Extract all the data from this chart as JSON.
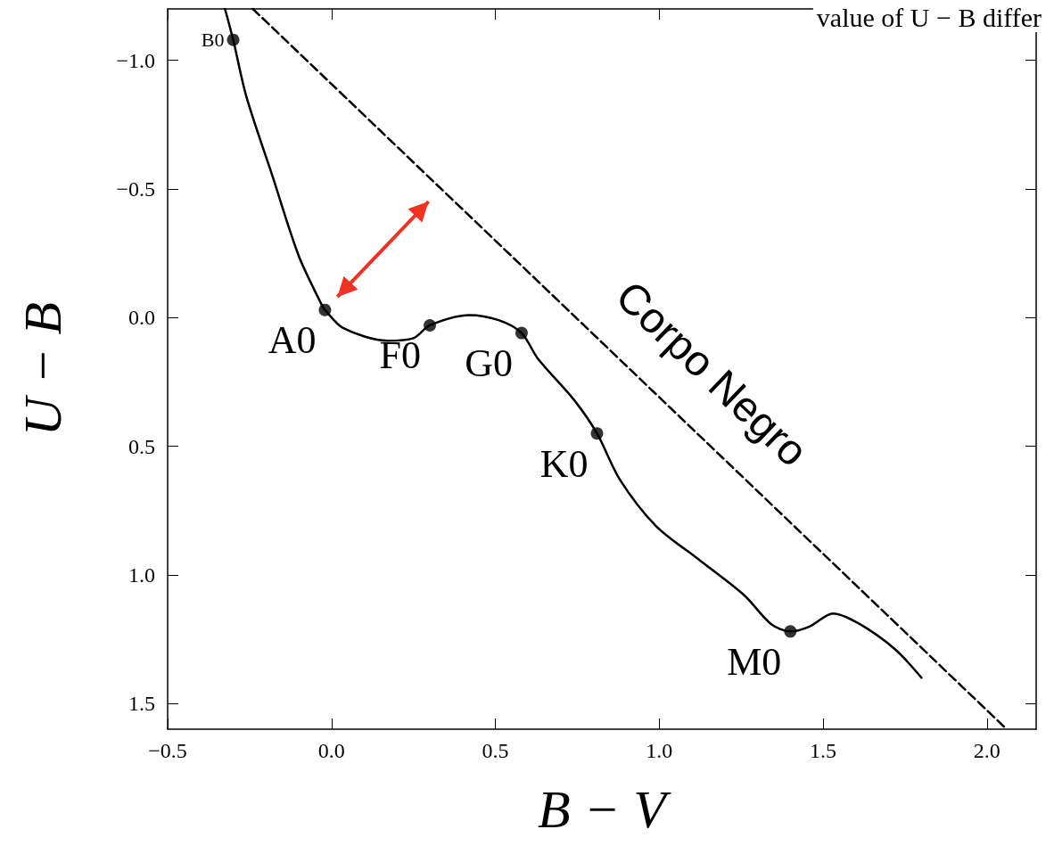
{
  "chart_data": {
    "type": "line",
    "xlabel": "B − V",
    "ylabel": "U − B",
    "xlim": [
      -0.5,
      2.15
    ],
    "ylim": [
      1.6,
      -1.2
    ],
    "xticks": [
      {
        "value": -0.5,
        "label": "−0.5"
      },
      {
        "value": 0,
        "label": "0.0"
      },
      {
        "value": 0.5,
        "label": "0.5"
      },
      {
        "value": 1,
        "label": "1.0"
      },
      {
        "value": 1.5,
        "label": "1.5"
      },
      {
        "value": 2,
        "label": "2.0"
      }
    ],
    "yticks": [
      {
        "value": -1,
        "label": "−1.0"
      },
      {
        "value": -0.5,
        "label": "−0.5"
      },
      {
        "value": 0,
        "label": "0.0"
      },
      {
        "value": 0.5,
        "label": "0.5"
      },
      {
        "value": 1,
        "label": "1.0"
      },
      {
        "value": 1.5,
        "label": "1.5"
      }
    ],
    "grid": false,
    "legend": false,
    "series": [
      {
        "color": "#000000",
        "line_style": "solid",
        "x": [
          -0.325,
          -0.3,
          -0.26,
          -0.18,
          -0.1,
          -0.03,
          -0.02,
          0.035,
          0.17,
          0.25,
          0.3,
          0.42,
          0.51,
          0.58,
          0.63,
          0.74,
          0.81,
          0.88,
          0.99,
          1.12,
          1.26,
          1.34,
          1.4,
          1.46,
          1.53,
          1.61,
          1.72,
          1.8
        ],
        "values": [
          -1.2,
          -1.08,
          -0.86,
          -0.55,
          -0.24,
          -0.05,
          -0.03,
          0.04,
          0.09,
          0.08,
          0.03,
          -0.01,
          0.01,
          0.06,
          0.16,
          0.32,
          0.45,
          0.63,
          0.81,
          0.94,
          1.08,
          1.19,
          1.22,
          1.2,
          1.15,
          1.19,
          1.29,
          1.4
        ]
      },
      {
        "type": "scatter",
        "color": "#000000",
        "marker": "circle",
        "x": [
          -0.3,
          -0.02,
          0.3,
          0.58,
          0.81,
          1.4
        ],
        "values": [
          -1.08,
          -0.03,
          0.03,
          0.06,
          0.45,
          1.22
        ]
      },
      {
        "name": "Corpo Negro",
        "color": "#000000",
        "line_style": "dashed",
        "x": [
          -0.24,
          2.06
        ],
        "values": [
          -1.2,
          1.6
        ]
      }
    ],
    "annotations": [
      {
        "text": "B0",
        "x": -0.3,
        "y": -1.08
      },
      {
        "text": "A0",
        "x": -0.02,
        "y": -0.03
      },
      {
        "text": "F0",
        "x": 0.3,
        "y": 0.03
      },
      {
        "text": "G0",
        "x": 0.58,
        "y": 0.06
      },
      {
        "text": "K0",
        "x": 0.81,
        "y": 0.45
      },
      {
        "text": "M0",
        "x": 1.4,
        "y": 1.22
      },
      "value of U − B differ"
    ]
  }
}
